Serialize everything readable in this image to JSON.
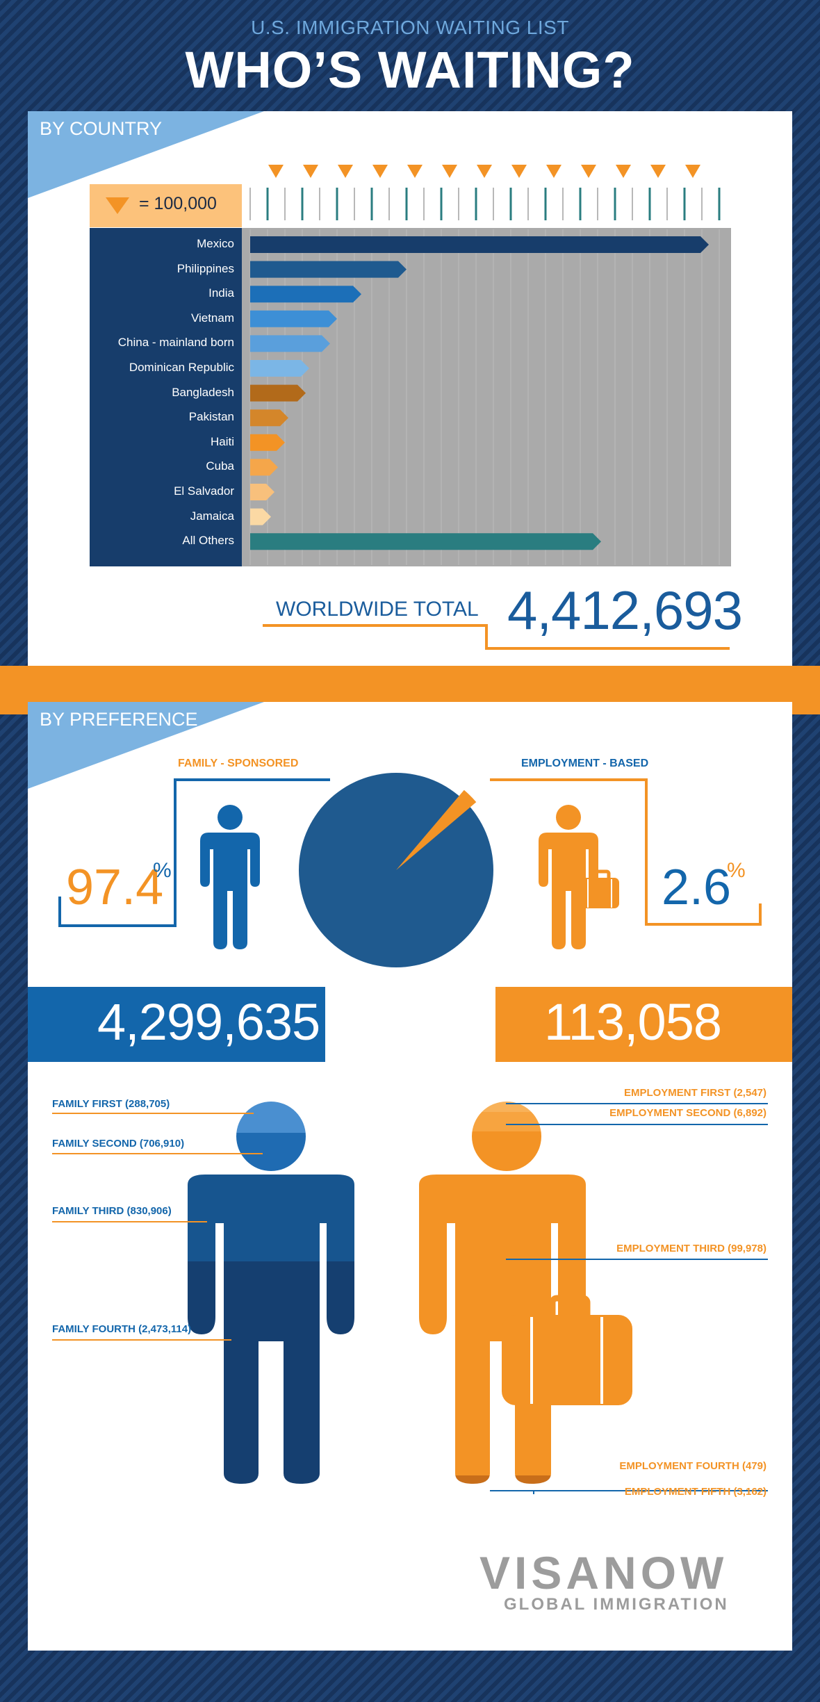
{
  "header": {
    "subtitle": "U.S. IMMIGRATION WAITING LIST",
    "title": "WHO’S WAITING?"
  },
  "by_country": {
    "section_title": "BY COUNTRY",
    "legend": "= 100,000",
    "worldwide_label": "WORLDWIDE TOTAL",
    "worldwide_total": "4,412,693"
  },
  "by_preference": {
    "section_title": "BY PREFERENCE",
    "family_label": "FAMILY - SPONSORED",
    "employment_label": "EMPLOYMENT - BASED",
    "family_pct": "97.4",
    "employment_pct": "2.6",
    "pct_sign": "%",
    "family_total": "4,299,635",
    "employment_total": "113,058",
    "family_breakdown": [
      "FAMILY FIRST (288,705)",
      "FAMILY SECOND (706,910)",
      "FAMILY THIRD (830,906)",
      "FAMILY FOURTH (2,473,114)"
    ],
    "employment_breakdown": [
      "EMPLOYMENT FIRST (2,547)",
      "EMPLOYMENT SECOND (6,892)",
      "EMPLOYMENT THIRD (99,978)",
      "EMPLOYMENT FOURTH (479)",
      "EMPLOYMENT FIFTH (3,162)"
    ]
  },
  "logo": {
    "name": "VISANOW",
    "tagline": "GLOBAL IMMIGRATION"
  },
  "colors": {
    "navy": "#173d6b",
    "blue": "#1366ab",
    "light_blue": "#7cb3e1",
    "orange": "#f39325"
  },
  "chart_data": [
    {
      "type": "bar",
      "orientation": "horizontal",
      "categories": [
        "Mexico",
        "Philippines",
        "India",
        "Vietnam",
        "China - mainland born",
        "Dominican Republic",
        "Bangladesh",
        "Pakistan",
        "Haiti",
        "Cuba",
        "El Salvador",
        "Jamaica",
        "All Others"
      ],
      "values": [
        1320000,
        450000,
        320000,
        250000,
        230000,
        170000,
        160000,
        110000,
        100000,
        80000,
        70000,
        60000,
        1010000
      ],
      "bar_colors": [
        "#173d6b",
        "#1f5a8f",
        "#1c6fb8",
        "#3d8fd6",
        "#5a9fdc",
        "#7bb6e6",
        "#b26a1a",
        "#d4862a",
        "#f39325",
        "#f5a64a",
        "#f8c07c",
        "#fbd9a4",
        "#2a7d80"
      ],
      "xlim": [
        0,
        1400000
      ],
      "legend": "= 100,000",
      "grid": true
    },
    {
      "type": "pie",
      "labels": [
        "FAMILY - SPONSORED",
        "EMPLOYMENT - BASED"
      ],
      "values": [
        97.4,
        2.6
      ],
      "colors": [
        "#1f5a8f",
        "#f39325"
      ]
    }
  ]
}
